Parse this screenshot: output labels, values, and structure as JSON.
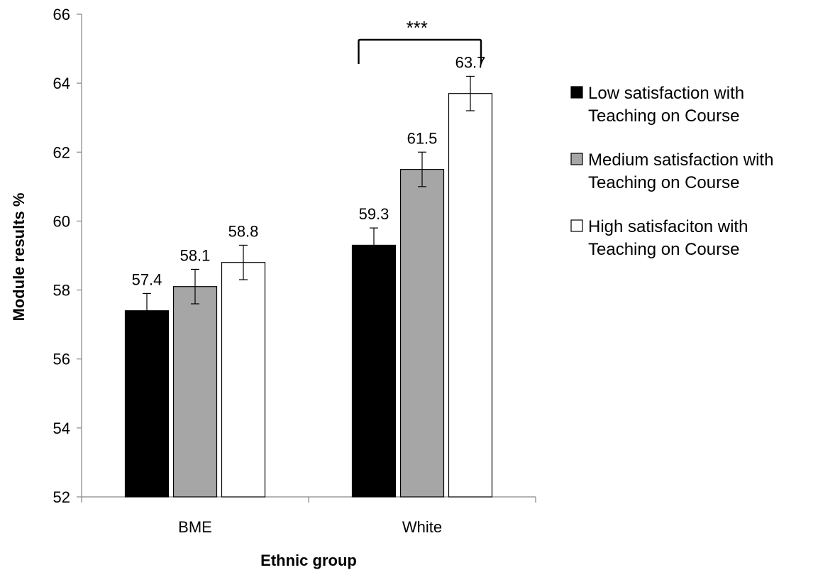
{
  "chart_data": {
    "type": "bar",
    "categories": [
      "BME",
      "White"
    ],
    "series": [
      {
        "name": [
          "Low satisfaction with",
          "Teaching on Course"
        ],
        "color": "#000000",
        "values": [
          57.4,
          59.3
        ],
        "error": [
          0.5,
          0.5
        ]
      },
      {
        "name": [
          "Medium satisfaction with",
          "Teaching on Course"
        ],
        "color": "#a6a6a6",
        "values": [
          58.1,
          61.5
        ],
        "error": [
          0.5,
          0.5
        ]
      },
      {
        "name": [
          "High satisfaciton with",
          "Teaching on Course"
        ],
        "color": "#ffffff",
        "values": [
          58.8,
          63.7
        ],
        "error": [
          0.5,
          0.5
        ]
      }
    ],
    "data_labels": [
      [
        "57.4",
        "59.3"
      ],
      [
        "58.1",
        "61.5"
      ],
      [
        "58.8",
        "63.7"
      ]
    ],
    "xlabel": "Ethnic group",
    "ylabel": "Module results %",
    "ylim": [
      52,
      66
    ],
    "yticks": [
      "52",
      "54",
      "56",
      "58",
      "60",
      "62",
      "64",
      "66"
    ],
    "grid": false,
    "legend_position": "right",
    "annotation": {
      "text": "***",
      "category": "White",
      "from_series": 0,
      "to_series": 2
    }
  }
}
